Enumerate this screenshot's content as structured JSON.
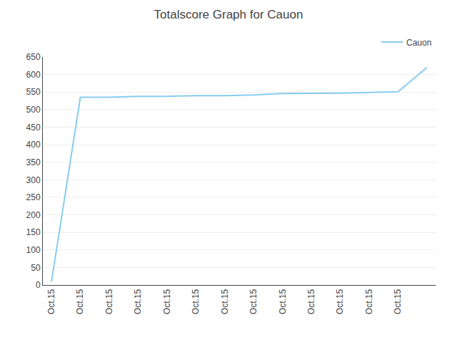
{
  "chart_data": {
    "type": "line",
    "title": "Totalscore Graph for Cauon",
    "x": [
      0,
      1,
      2,
      3,
      4,
      5,
      6,
      7,
      8,
      9,
      10,
      11,
      12,
      13
    ],
    "series": [
      {
        "name": "Cauon",
        "color": "#88ccee",
        "values": [
          10,
          535,
          535,
          538,
          538,
          540,
          540,
          542,
          546,
          546,
          547,
          549,
          551,
          620
        ]
      }
    ],
    "xlim": [
      -0.3,
      13.3
    ],
    "xticks": [
      {
        "value": 0,
        "label": "Oct.15"
      },
      {
        "value": 1,
        "label": "Oct.15"
      },
      {
        "value": 2,
        "label": "Oct.15"
      },
      {
        "value": 3,
        "label": "Oct.15"
      },
      {
        "value": 4,
        "label": "Oct.15"
      },
      {
        "value": 5,
        "label": "Oct.15"
      },
      {
        "value": 6,
        "label": "Oct.15"
      },
      {
        "value": 7,
        "label": "Oct.15"
      },
      {
        "value": 8,
        "label": "Oct.15"
      },
      {
        "value": 9,
        "label": "Oct.15"
      },
      {
        "value": 10,
        "label": "Oct.15"
      },
      {
        "value": 11,
        "label": "Oct.15"
      },
      {
        "value": 12,
        "label": "Oct.15"
      }
    ],
    "ylim": [
      0,
      650
    ],
    "yticks": [
      0,
      50,
      100,
      150,
      200,
      250,
      300,
      350,
      400,
      450,
      500,
      550,
      600,
      650
    ],
    "grid": "y",
    "legend": "upper right"
  }
}
